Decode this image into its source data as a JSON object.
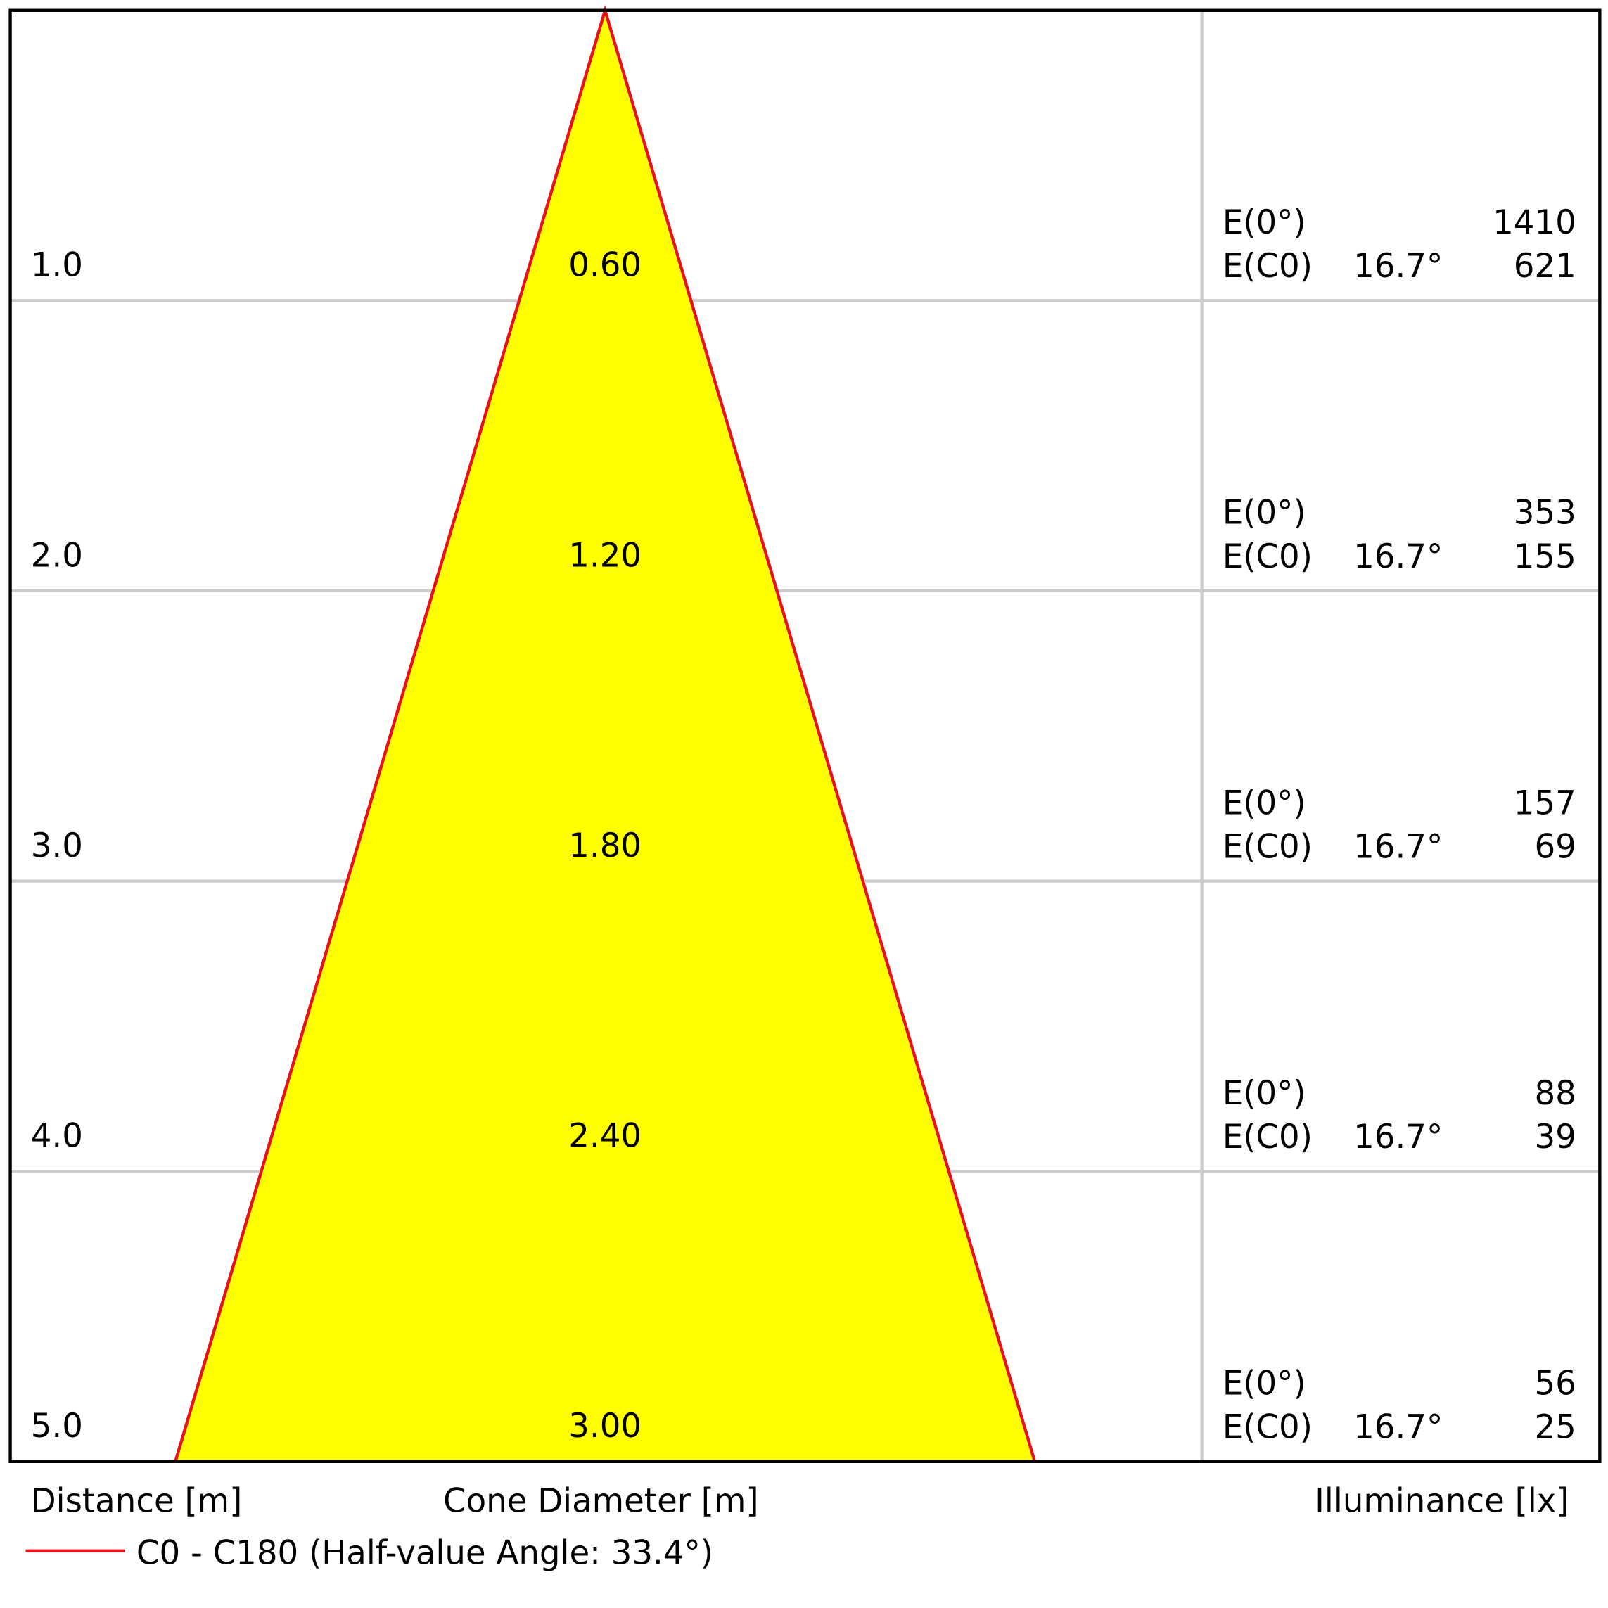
{
  "rows": [
    {
      "distance": "1.0",
      "diameter": "0.60",
      "e0_label": "E(0°)",
      "e0": "1410",
      "ec0_label": "E(C0)",
      "ec0_angle": "16.7°",
      "ec0": "621"
    },
    {
      "distance": "2.0",
      "diameter": "1.20",
      "e0_label": "E(0°)",
      "e0": "353",
      "ec0_label": "E(C0)",
      "ec0_angle": "16.7°",
      "ec0": "155"
    },
    {
      "distance": "3.0",
      "diameter": "1.80",
      "e0_label": "E(0°)",
      "e0": "157",
      "ec0_label": "E(C0)",
      "ec0_angle": "16.7°",
      "ec0": "69"
    },
    {
      "distance": "4.0",
      "diameter": "2.40",
      "e0_label": "E(0°)",
      "e0": "88",
      "ec0_label": "E(C0)",
      "ec0_angle": "16.7°",
      "ec0": "39"
    },
    {
      "distance": "5.0",
      "diameter": "3.00",
      "e0_label": "E(0°)",
      "e0": "56",
      "ec0_label": "E(C0)",
      "ec0_angle": "16.7°",
      "ec0": "25"
    }
  ],
  "axis_labels": {
    "distance": "Distance [m]",
    "diameter": "Cone Diameter [m]",
    "illuminance": "Illuminance [lx]"
  },
  "legend": {
    "label": "C0 - C180 (Half-value Angle: 33.4°)"
  }
}
